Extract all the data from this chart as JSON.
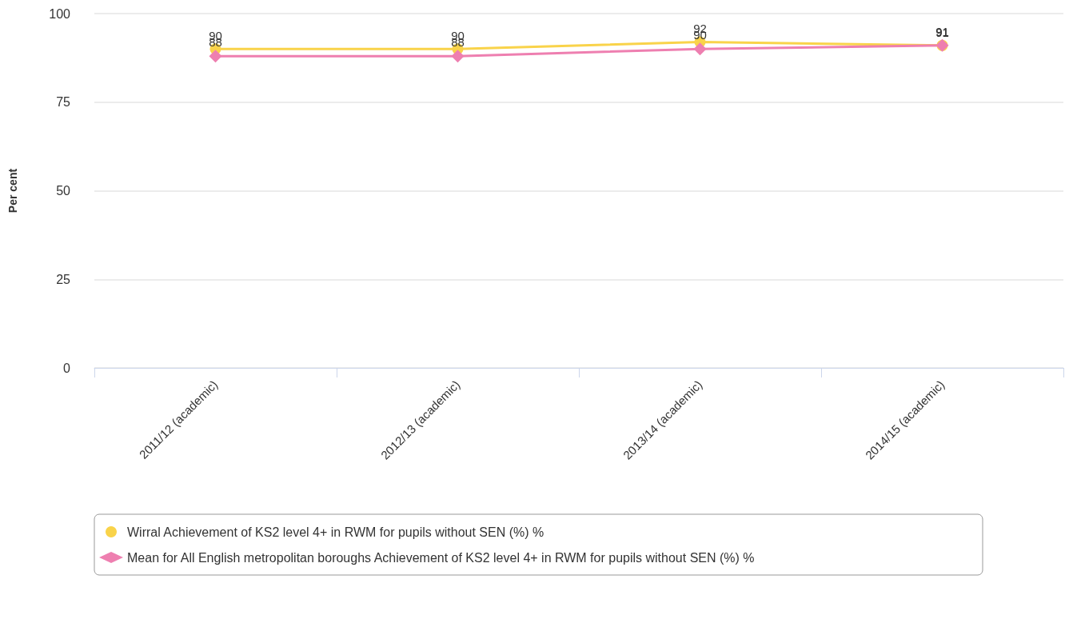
{
  "chart_data": {
    "type": "line",
    "ylabel": "Per cent",
    "categories": [
      "2011/12 (academic)",
      "2012/13 (academic)",
      "2013/14 (academic)",
      "2014/15 (academic)"
    ],
    "series": [
      {
        "name": "Wirral Achievement of KS2 level 4+ in RWM for pupils without SEN (%) %",
        "color": "#f9d34a",
        "marker": "circle",
        "values": [
          90,
          90,
          92,
          91
        ]
      },
      {
        "name": "Mean for All English metropolitan boroughs Achievement of KS2 level 4+ in RWM for pupils without SEN (%) %",
        "color": "#ee7fb0",
        "marker": "diamond",
        "values": [
          88,
          88,
          90,
          91
        ]
      }
    ],
    "ylim": [
      0,
      100
    ],
    "yticks": [
      0,
      25,
      50,
      75,
      100
    ],
    "grid": "y",
    "legend": "bottom",
    "data_labels": true
  }
}
